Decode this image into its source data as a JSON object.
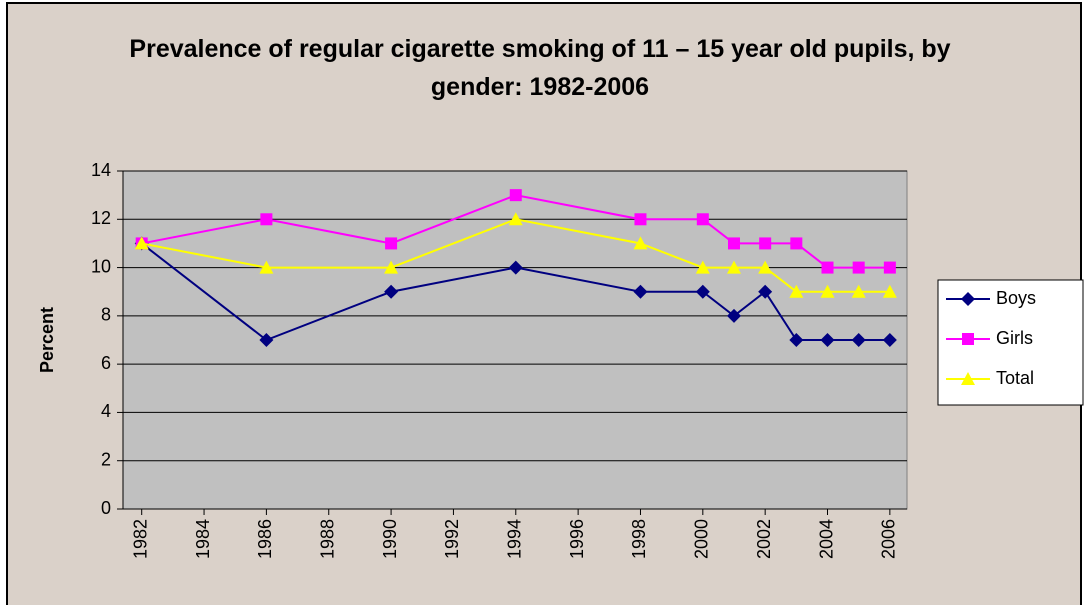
{
  "chart_data": {
    "type": "line",
    "title": "Prevalence of regular cigarette smoking of 11 – 15 year old pupils, by gender: 1982-2006",
    "y_label": "Percent",
    "x": [
      1982,
      1986,
      1990,
      1994,
      1998,
      2000,
      2001,
      2002,
      2003,
      2004,
      2005,
      2006
    ],
    "series": [
      {
        "name": "Boys",
        "color": "#000080",
        "marker": "diamond",
        "values": [
          11,
          7,
          9,
          10,
          9,
          9,
          8,
          9,
          7,
          7,
          7,
          7
        ]
      },
      {
        "name": "Girls",
        "color": "#ff00ff",
        "marker": "square",
        "values": [
          11,
          12,
          11,
          13,
          12,
          12,
          11,
          11,
          11,
          10,
          10,
          10
        ]
      },
      {
        "name": "Total",
        "color": "#ffff00",
        "marker": "triangle",
        "values": [
          11,
          10,
          10,
          12,
          11,
          10,
          10,
          10,
          9,
          9,
          9,
          9
        ]
      }
    ],
    "xlim": [
      1981.4,
      2006.55
    ],
    "xticks": [
      1982,
      1984,
      1986,
      1988,
      1990,
      1992,
      1994,
      1996,
      1998,
      2000,
      2002,
      2004,
      2006
    ],
    "ylim": [
      0,
      14
    ],
    "yticks": [
      0,
      2,
      4,
      6,
      8,
      10,
      12,
      14
    ],
    "grid": true,
    "legend": "right",
    "plot_color": "#c0c0c0"
  }
}
